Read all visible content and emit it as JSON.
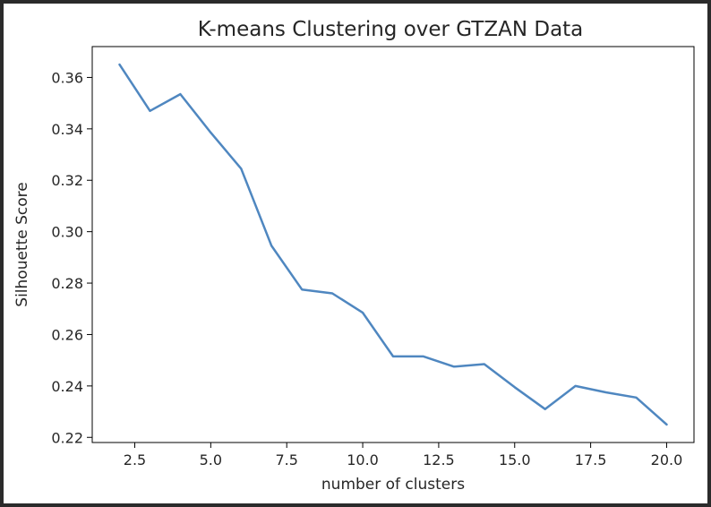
{
  "chart_data": {
    "type": "line",
    "title": "K-means Clustering over GTZAN Data",
    "xlabel": "number of clusters",
    "ylabel": "Silhouette Score",
    "xlim": [
      1.1,
      20.9
    ],
    "ylim": [
      0.218,
      0.372
    ],
    "xticks": [
      2.5,
      5.0,
      7.5,
      10.0,
      12.5,
      15.0,
      17.5,
      20.0
    ],
    "xtick_labels": [
      "2.5",
      "5.0",
      "7.5",
      "10.0",
      "12.5",
      "15.0",
      "17.5",
      "20.0"
    ],
    "yticks": [
      0.22,
      0.24,
      0.26,
      0.28,
      0.3,
      0.32,
      0.34,
      0.36
    ],
    "ytick_labels": [
      "0.22",
      "0.24",
      "0.26",
      "0.28",
      "0.30",
      "0.32",
      "0.34",
      "0.36"
    ],
    "grid": false,
    "series": [
      {
        "color": "#4f87c0",
        "x": [
          2,
          3,
          4,
          5,
          6,
          7,
          8,
          9,
          10,
          11,
          12,
          13,
          14,
          15,
          16,
          17,
          18,
          19,
          20
        ],
        "y": [
          0.365,
          0.347,
          0.3535,
          0.3385,
          0.3245,
          0.2945,
          0.2775,
          0.276,
          0.2685,
          0.2515,
          0.2515,
          0.2475,
          0.2485,
          0.2395,
          0.231,
          0.24,
          0.2375,
          0.2355,
          0.225
        ]
      }
    ]
  }
}
